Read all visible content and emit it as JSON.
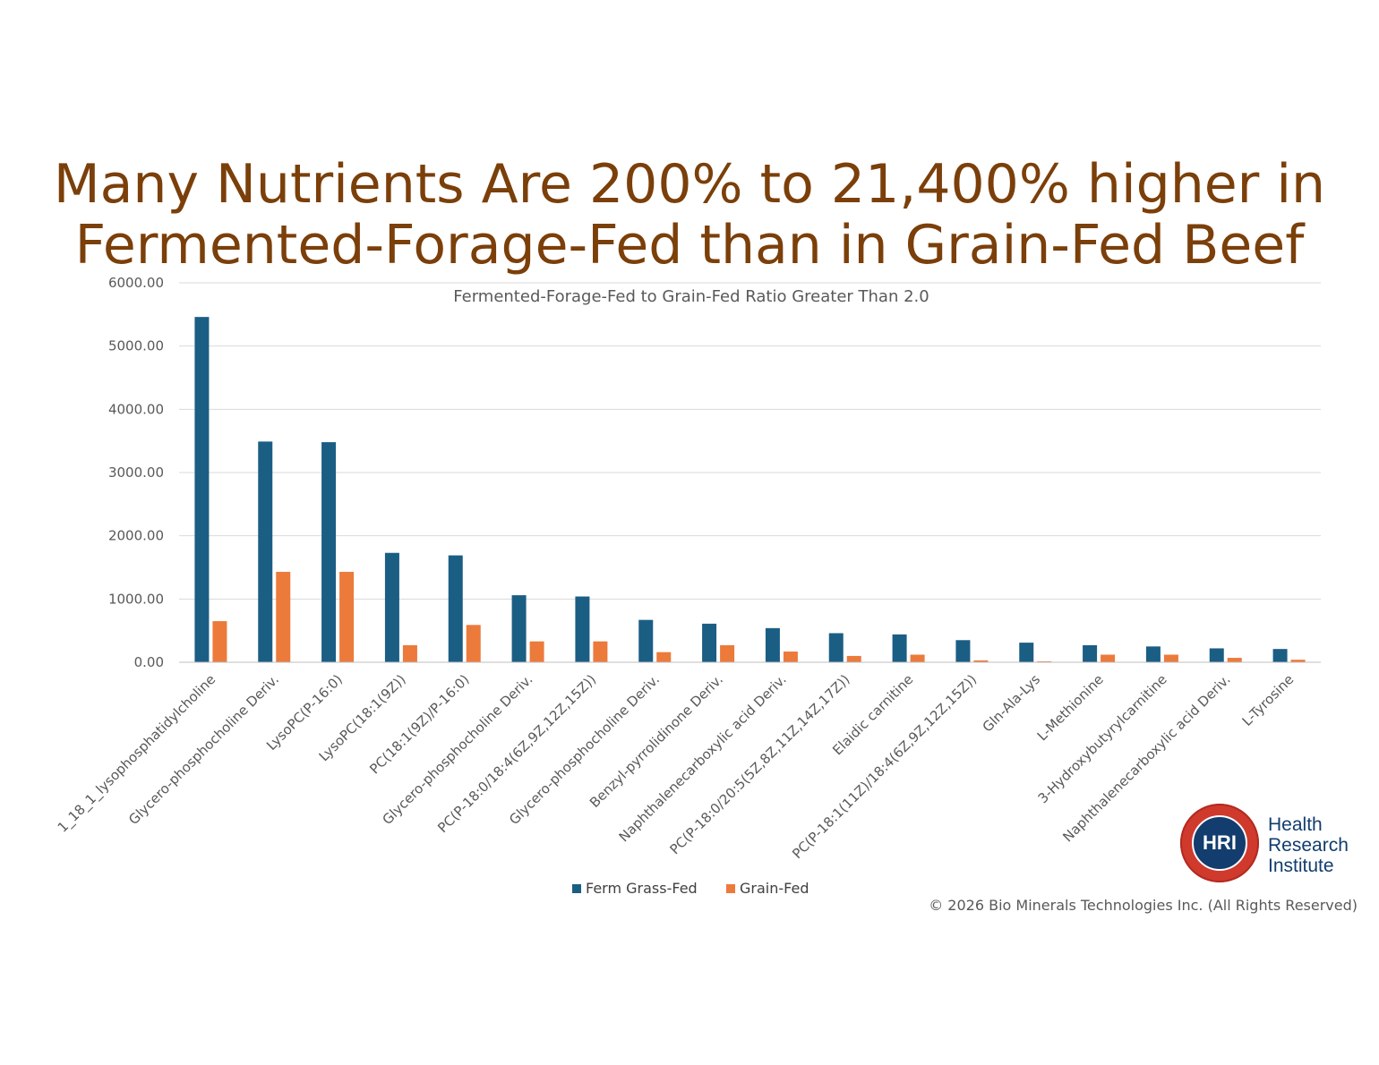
{
  "slide": {
    "title_line1": "Many Nutrients Are 200% to 21,400% higher in",
    "title_line2": "Fermented-Forage-Fed than in Grain-Fed Beef",
    "copyright": "© 2026 Bio Minerals Technologies Inc. (All Rights Reserved)"
  },
  "logo": {
    "mark": "HRI",
    "line1": "Health",
    "line2": "Research",
    "line3": "Institute"
  },
  "colors": {
    "ferm": "#1b5e84",
    "grain": "#ec7a3b",
    "title": "#7b3f0a",
    "grid": "#d9d9d9",
    "axis_text": "#595959"
  },
  "chart_data": {
    "type": "bar",
    "title": "Fermented-Forage-Fed to Grain-Fed Ratio Greater Than 2.0",
    "xlabel": "",
    "ylabel": "",
    "ylim": [
      0,
      6000
    ],
    "yticks": [
      "0.00",
      "1000.00",
      "2000.00",
      "3000.00",
      "4000.00",
      "5000.00",
      "6000.00"
    ],
    "grid": true,
    "legend_position": "bottom",
    "categories": [
      "1_18_1_lysophosphatidylcholine",
      "Glycero-phosphocholine Deriv.",
      "LysoPC(P-16:0)",
      "LysoPC(18:1(9Z))",
      "PC(18:1(9Z)/P-16:0)",
      "Glycero-phosphocholine Deriv.",
      "PC(P-18:0/18:4(6Z,9Z,12Z,15Z))",
      "Glycero-phosphocholine Deriv.",
      "Benzyl-pyrrolidinone Deriv.",
      "Naphthalenecarboxylic acid Deriv.",
      "PC(P-18:0/20:5(5Z,8Z,11Z,14Z,17Z))",
      "Elaidic carnitine",
      "PC(P-18:1(11Z)/18:4(6Z,9Z,12Z,15Z))",
      "Gln-Ala-Lys",
      "L-Methionine",
      "3-Hydroxybutyrylcarnitine",
      "Naphthalenecarboxylic acid Deriv.",
      "L-Tyrosine"
    ],
    "series": [
      {
        "name": "Ferm Grass-Fed",
        "values": [
          5460,
          3490,
          3480,
          1730,
          1690,
          1060,
          1040,
          670,
          610,
          540,
          460,
          440,
          350,
          310,
          270,
          250,
          220,
          210
        ]
      },
      {
        "name": "Grain-Fed",
        "values": [
          650,
          1430,
          1430,
          270,
          590,
          330,
          330,
          160,
          270,
          170,
          100,
          120,
          30,
          15,
          120,
          120,
          70,
          40
        ]
      }
    ]
  }
}
